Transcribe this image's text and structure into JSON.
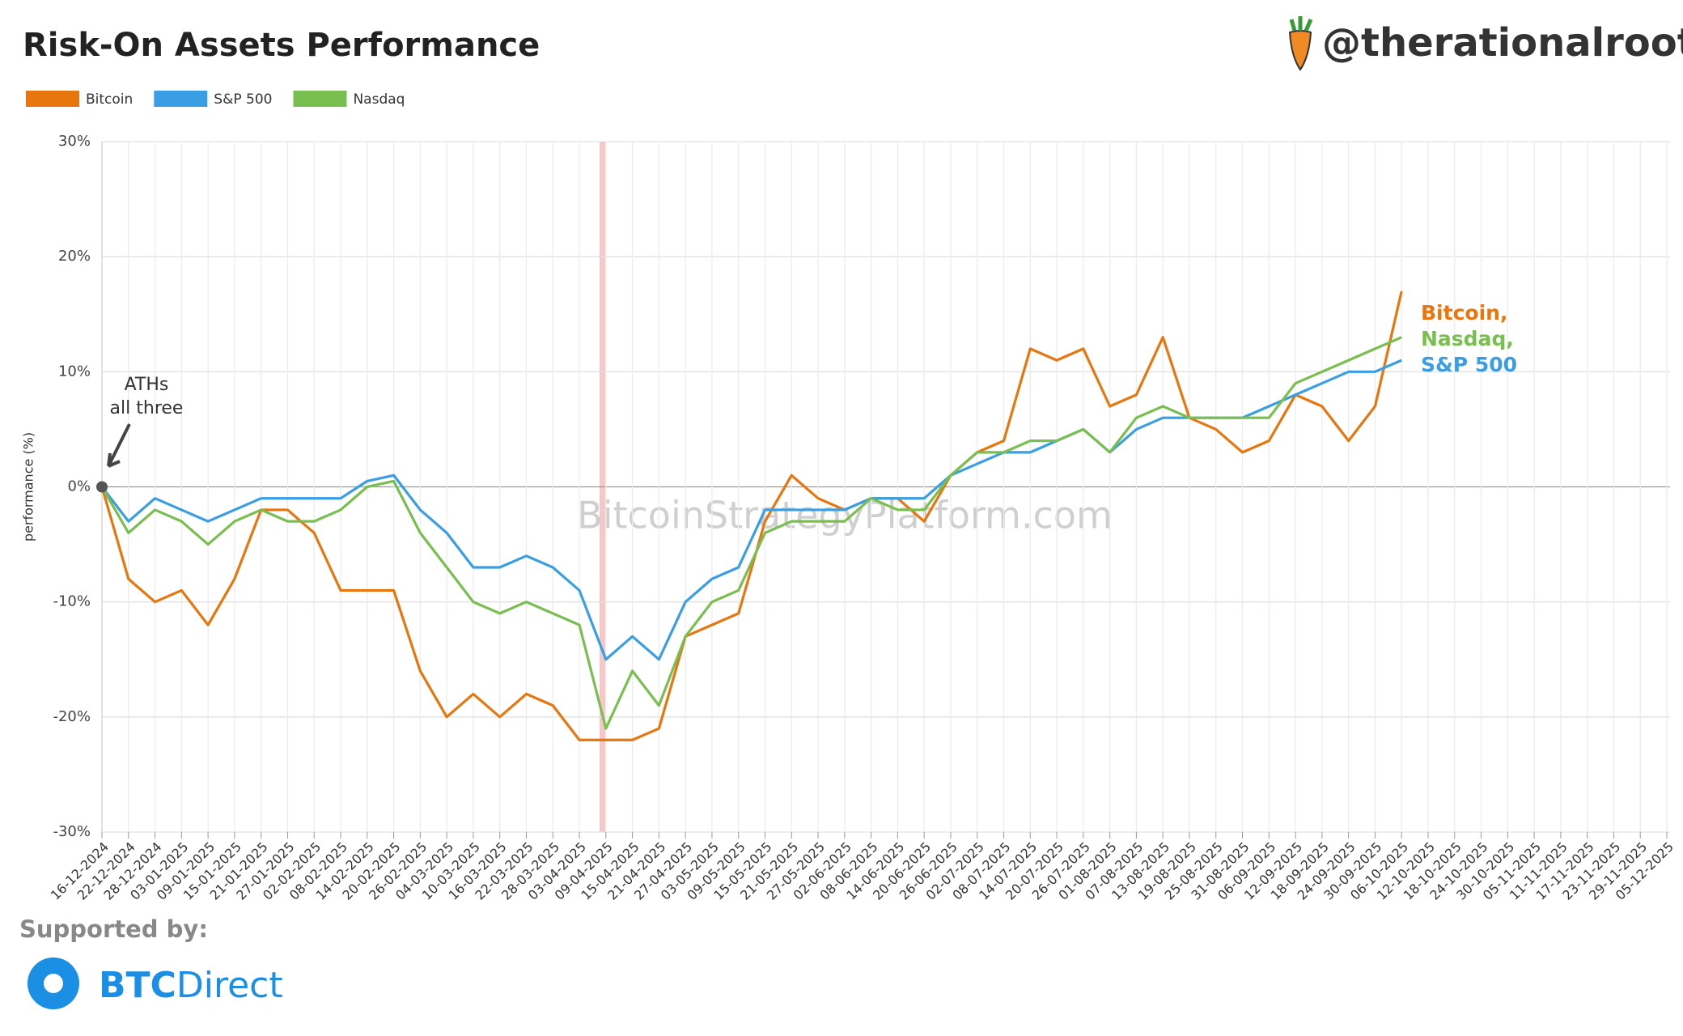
{
  "header": {
    "handle": "@therationalroot"
  },
  "footer": {
    "supported": "Supported by:",
    "logo_bold": "BTC",
    "logo_light": "Direct"
  },
  "chart_data": {
    "type": "line",
    "title": "Risk-On Assets Performance",
    "y_label": "performance (%)",
    "watermark": "BitcoinStrategyPlatform.com",
    "annotation": [
      "ATHs",
      "all three"
    ],
    "categories": [
      "16-12-2024",
      "22-12-2024",
      "28-12-2024",
      "03-01-2025",
      "09-01-2025",
      "15-01-2025",
      "21-01-2025",
      "27-01-2025",
      "02-02-2025",
      "08-02-2025",
      "14-02-2025",
      "20-02-2025",
      "26-02-2025",
      "04-03-2025",
      "10-03-2025",
      "16-03-2025",
      "22-03-2025",
      "28-03-2025",
      "03-04-2025",
      "09-04-2025",
      "15-04-2025",
      "21-04-2025",
      "27-04-2025",
      "03-05-2025",
      "09-05-2025",
      "15-05-2025",
      "21-05-2025",
      "27-05-2025",
      "02-06-2025",
      "08-06-2025",
      "14-06-2025",
      "20-06-2025",
      "26-06-2025",
      "02-07-2025",
      "08-07-2025",
      "14-07-2025",
      "20-07-2025",
      "26-07-2025",
      "01-08-2025",
      "07-08-2025",
      "13-08-2025",
      "19-08-2025",
      "25-08-2025",
      "31-08-2025",
      "06-09-2025",
      "12-09-2025",
      "18-09-2025",
      "24-09-2025",
      "30-09-2025",
      "06-10-2025",
      "12-10-2025",
      "18-10-2025",
      "24-10-2025",
      "30-10-2025",
      "05-11-2025",
      "11-11-2025",
      "17-11-2025",
      "23-11-2025",
      "29-11-2025",
      "05-12-2025"
    ],
    "series": [
      {
        "name": "Bitcoin",
        "end_label": "Bitcoin,",
        "color": "#e8760f",
        "values": [
          0,
          -8,
          -10,
          -9,
          -12,
          -8,
          -2,
          -2,
          -4,
          -9,
          -9,
          -9,
          -16,
          -20,
          -18,
          -20,
          -18,
          -19,
          -22,
          -22,
          -22,
          -21,
          -13,
          -12,
          -11,
          -3,
          1,
          -1,
          -2,
          -1,
          -1,
          -3,
          1,
          3,
          4,
          12,
          11,
          12,
          7,
          8,
          13,
          6,
          5,
          3,
          4,
          8,
          7,
          4,
          7,
          17,
          null,
          null,
          null,
          null,
          null,
          null,
          null,
          null,
          null,
          null
        ]
      },
      {
        "name": "S&P 500",
        "end_label": "S&P 500",
        "color": "#3a9ee4",
        "values": [
          0,
          -3,
          -1,
          -2,
          -3,
          -2,
          -1,
          -1,
          -1,
          -1,
          0.5,
          1,
          -2,
          -4,
          -7,
          -7,
          -6,
          -7,
          -9,
          -15,
          -13,
          -15,
          -10,
          -8,
          -7,
          -2,
          -2,
          -2,
          -2,
          -1,
          -1,
          -1,
          1,
          2,
          3,
          3,
          4,
          5,
          3,
          5,
          6,
          6,
          6,
          6,
          7,
          8,
          9,
          10,
          10,
          11,
          null,
          null,
          null,
          null,
          null,
          null,
          null,
          null,
          null,
          null
        ]
      },
      {
        "name": "Nasdaq",
        "end_label": "Nasdaq,",
        "color": "#79bf4f",
        "values": [
          0,
          -4,
          -2,
          -3,
          -5,
          -3,
          -2,
          -3,
          -3,
          -2,
          0,
          0.5,
          -4,
          -7,
          -10,
          -11,
          -10,
          -11,
          -12,
          -21,
          -16,
          -19,
          -13,
          -10,
          -9,
          -4,
          -3,
          -3,
          -3,
          -1,
          -2,
          -2,
          1,
          3,
          3,
          4,
          4,
          5,
          3,
          6,
          7,
          6,
          6,
          6,
          6,
          9,
          10,
          11,
          12,
          13,
          null,
          null,
          null,
          null,
          null,
          null,
          null,
          null,
          null,
          null
        ]
      }
    ],
    "end_label_order": [
      0,
      2,
      1
    ],
    "ylim": [
      -30,
      30
    ],
    "yticks": [
      {
        "value": -30,
        "label": "-30%"
      },
      {
        "value": -20,
        "label": "-20%"
      },
      {
        "value": -10,
        "label": "-10%"
      },
      {
        "value": 0,
        "label": "0%"
      },
      {
        "value": 10,
        "label": "10%"
      },
      {
        "value": 20,
        "label": "20%"
      },
      {
        "value": 30,
        "label": "30%"
      }
    ],
    "grid": true
  }
}
